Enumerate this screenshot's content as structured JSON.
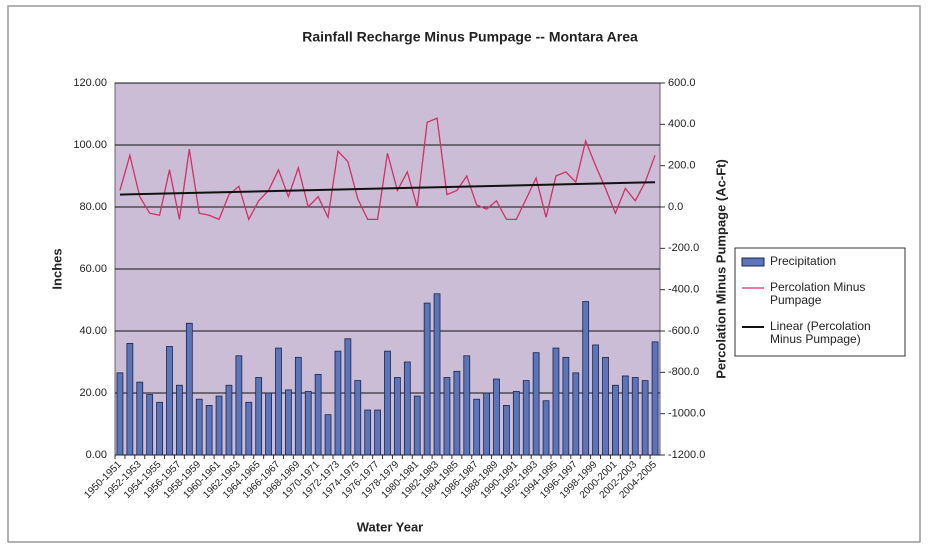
{
  "chart_data": {
    "type": "bar-line",
    "title": "Rainfall Recharge Minus Pumpage -- Montara Area",
    "x_label": "Water Year",
    "y_label": "Inches",
    "y2_label": "Percolation Minus Pumpage (Ac-Ft)",
    "categories": [
      "1950-1951",
      null,
      "1952-1953",
      null,
      "1954-1955",
      null,
      "1956-1957",
      null,
      "1958-1959",
      null,
      "1960-1961",
      null,
      "1962-1963",
      null,
      "1964-1965",
      null,
      "1966-1967",
      null,
      "1968-1969",
      null,
      "1970-1971",
      null,
      "1972-1973",
      null,
      "1974-1975",
      null,
      "1976-1977",
      null,
      "1978-1979",
      null,
      "1980-1981",
      null,
      "1982-1983",
      null,
      "1984-1985",
      null,
      "1986-1987",
      null,
      "1988-1989",
      null,
      "1990-1991",
      null,
      "1992-1993",
      null,
      "1994-1995",
      null,
      "1996-1997",
      null,
      "1998-1999",
      null,
      "2000-2001",
      null,
      "2002-2003",
      null,
      "2004-2005"
    ],
    "ylim": [
      0,
      120
    ],
    "yticks": [
      {
        "value": 0,
        "label": "0.00"
      },
      {
        "value": 20,
        "label": "20.00"
      },
      {
        "value": 40,
        "label": "40.00"
      },
      {
        "value": 60,
        "label": "60.00"
      },
      {
        "value": 80,
        "label": "80.00"
      },
      {
        "value": 100,
        "label": "100.00"
      },
      {
        "value": 120,
        "label": "120.00"
      }
    ],
    "y2lim": [
      -1200,
      600
    ],
    "y2ticks": [
      {
        "value": -1200,
        "label": "-1200.0"
      },
      {
        "value": -1000,
        "label": "-1000.0"
      },
      {
        "value": -800,
        "label": "-800.0"
      },
      {
        "value": -600,
        "label": "-600.0"
      },
      {
        "value": -400,
        "label": "-400.0"
      },
      {
        "value": -200,
        "label": "-200.0"
      },
      {
        "value": 0,
        "label": "0.0"
      },
      {
        "value": 200,
        "label": "200.0"
      },
      {
        "value": 400,
        "label": "400.0"
      },
      {
        "value": 600,
        "label": "600.0"
      }
    ],
    "grid": true,
    "legend": "right",
    "series": [
      {
        "name": "Precipitation",
        "type": "bar",
        "color": "#5b75b8",
        "values": [
          26.5,
          36,
          23.5,
          19.5,
          17,
          35,
          22.5,
          42.5,
          18,
          16,
          19,
          22.5,
          32,
          17,
          25,
          20,
          34.5,
          21,
          31.5,
          20.5,
          26,
          13,
          33.5,
          37.5,
          24,
          14.5,
          14.5,
          33.5,
          25,
          30,
          19,
          49,
          52,
          25,
          27,
          32,
          18,
          20,
          24.5,
          16,
          20.5,
          24,
          33,
          17.5,
          34.5,
          31.5,
          26.5,
          49.5,
          35.5,
          31.5,
          22.5,
          25.5,
          25,
          24,
          36.5
        ]
      },
      {
        "name": "Percolation Minus Pumpage",
        "type": "line",
        "axis": "y2",
        "color": "#d0306a",
        "values": [
          80,
          250,
          50,
          -30,
          -40,
          180,
          -60,
          280,
          -30,
          -40,
          -60,
          60,
          100,
          -60,
          30,
          80,
          180,
          50,
          190,
          0,
          50,
          -50,
          270,
          220,
          40,
          -60,
          -60,
          260,
          80,
          170,
          0,
          410,
          430,
          60,
          80,
          150,
          10,
          -10,
          30,
          -60,
          -60,
          40,
          140,
          -50,
          150,
          170,
          120,
          320,
          200,
          90,
          -30,
          90,
          30,
          120,
          250
        ]
      }
    ],
    "trend": {
      "name": "Linear (Percolation Minus Pumpage)",
      "axis": "y2",
      "color": "#111111",
      "values": [
        60,
        120
      ]
    }
  }
}
